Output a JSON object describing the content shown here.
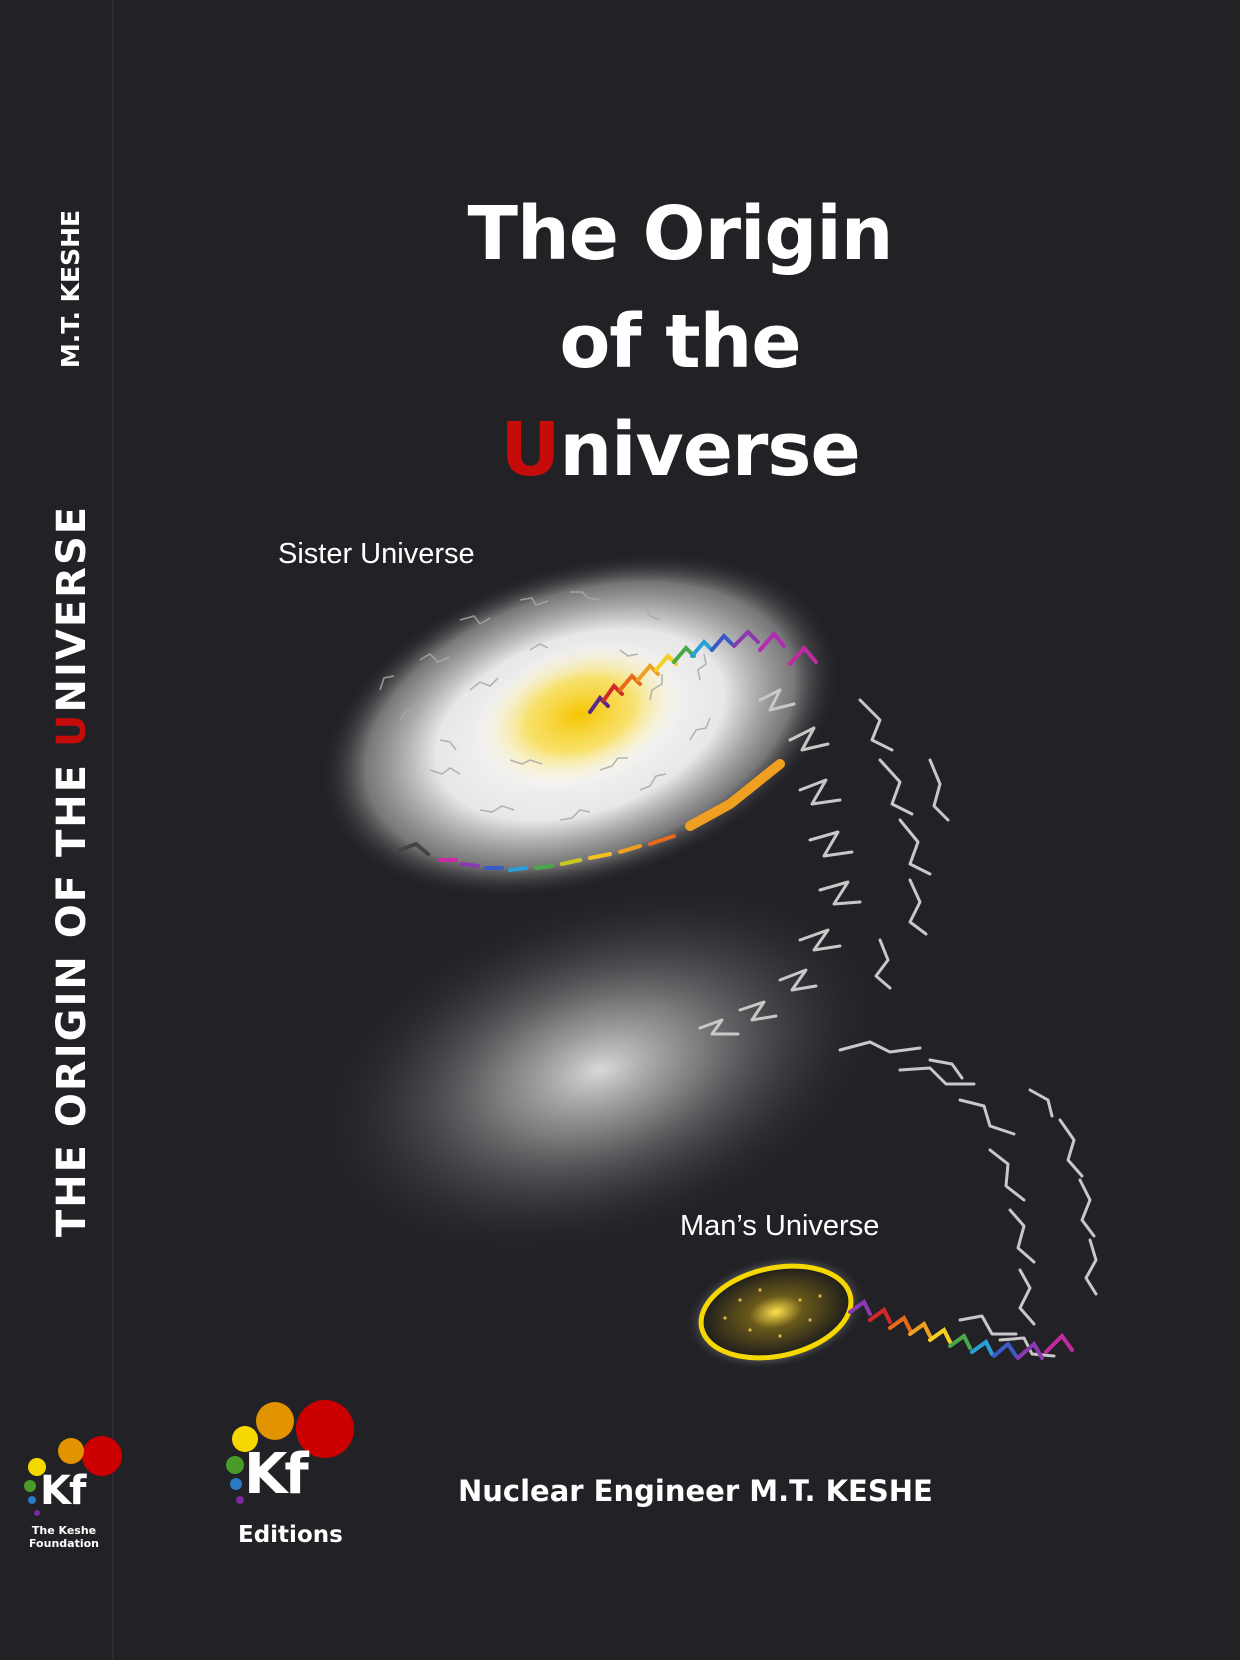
{
  "cover": {
    "title_lines": [
      "The Origin",
      "of  the"
    ],
    "title_last_first_letter": "U",
    "title_last_rest": "niverse",
    "spine_author": "M.T. KESHE",
    "spine_title_a": "THE  ORIGIN  OF  THE  ",
    "spine_title_red": "U",
    "spine_title_b": "NIVERSE",
    "label_sister": "Sister Universe",
    "label_man": "Man’s Universe",
    "author": "Nuclear Engineer  M.T. KESHE",
    "logo_spine_kf": "Kf",
    "logo_spine_caption_1": "The Keshe",
    "logo_spine_caption_2": "Foundation",
    "logo_front_kf": "Kf",
    "logo_front_caption": "Editions"
  },
  "colors": {
    "background": "#222226",
    "accent_red": "#c60b0b",
    "logo_yellow": "#f5d800",
    "logo_orange": "#e29300",
    "logo_red": "#cc0000",
    "logo_green": "#4a9a2a",
    "logo_blue": "#2a7ac4",
    "logo_purple": "#7a2a9a"
  },
  "icons": [
    "sister-universe-galaxy",
    "mans-universe-galaxy",
    "plasma-stream",
    "keshe-foundation-logo",
    "kf-editions-logo"
  ]
}
